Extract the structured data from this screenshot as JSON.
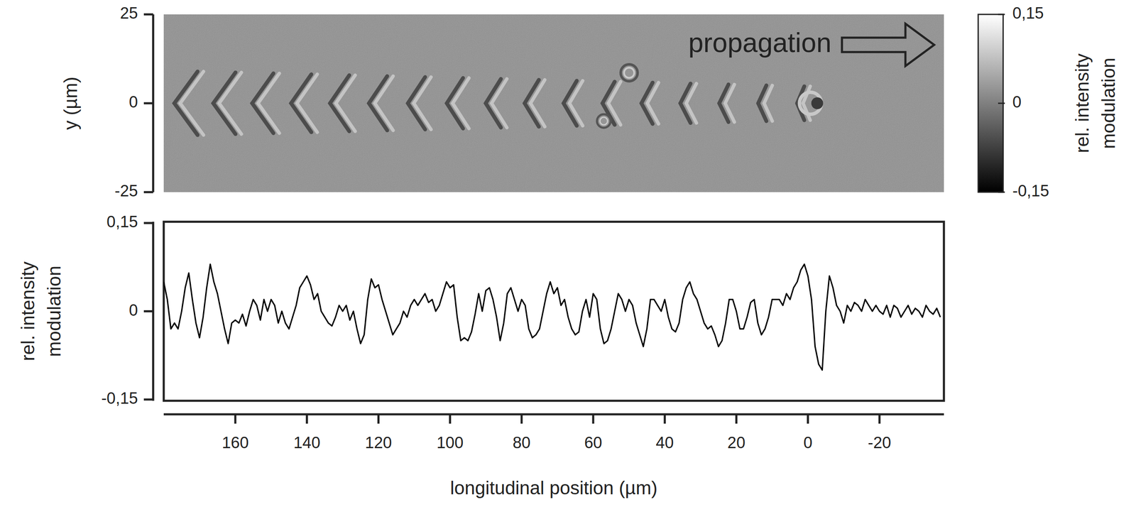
{
  "chart_data": [
    {
      "type": "image",
      "ylabel": "y (µm)",
      "xlim": [
        180,
        -38
      ],
      "ylim": [
        -25,
        25
      ],
      "yticks": [
        25,
        0,
        -25
      ],
      "tick_labels": "y",
      "annotation": "propagation",
      "colorbar": {
        "label": "rel. intensity modulation",
        "range": [
          -0.15,
          0.15
        ],
        "ticks": [
          {
            "value": 0.15,
            "label": "0,15"
          },
          0,
          {
            "value": -0.15,
            "label": "-0,15"
          }
        ]
      }
    },
    {
      "type": "line",
      "xlabel": "longitudinal position (µm)",
      "ylabel": "rel. intensity modulation",
      "color": "#000000",
      "xlim": [
        180,
        -38
      ],
      "ylim": [
        -0.15,
        0.15
      ],
      "xticks": [
        160,
        140,
        120,
        100,
        80,
        60,
        40,
        20,
        0,
        -20
      ],
      "yticks": [
        {
          "value": 0.15,
          "label": "0,15"
        },
        0,
        {
          "value": -0.15,
          "label": "-0,15"
        }
      ],
      "x": [
        180,
        179,
        178,
        177,
        176,
        175,
        174,
        173,
        172,
        171,
        170,
        169,
        168,
        167,
        166,
        165,
        164,
        163,
        162,
        161,
        160,
        159,
        158,
        157,
        156,
        155,
        154,
        153,
        152,
        151,
        150,
        149,
        148,
        147,
        146,
        145,
        144,
        143,
        142,
        141,
        140,
        139,
        138,
        137,
        136,
        135,
        134,
        133,
        132,
        131,
        130,
        129,
        128,
        127,
        126,
        125,
        124,
        123,
        122,
        121,
        120,
        119,
        118,
        117,
        116,
        115,
        114,
        113,
        112,
        111,
        110,
        109,
        108,
        107,
        106,
        105,
        104,
        103,
        102,
        101,
        100,
        99,
        98,
        97,
        96,
        95,
        94,
        93,
        92,
        91,
        90,
        89,
        88,
        87,
        86,
        85,
        84,
        83,
        82,
        81,
        80,
        79,
        78,
        77,
        76,
        75,
        74,
        73,
        72,
        71,
        70,
        69,
        68,
        67,
        66,
        65,
        64,
        63,
        62,
        61,
        60,
        59,
        58,
        57,
        56,
        55,
        54,
        53,
        52,
        51,
        50,
        49,
        48,
        47,
        46,
        45,
        44,
        43,
        42,
        41,
        40,
        39,
        38,
        37,
        36,
        35,
        34,
        33,
        32,
        31,
        30,
        29,
        28,
        27,
        26,
        25,
        24,
        23,
        22,
        21,
        20,
        19,
        18,
        17,
        16,
        15,
        14,
        13,
        12,
        11,
        10,
        9,
        8,
        7,
        6,
        5,
        4,
        3,
        2,
        1,
        0,
        -1,
        -2,
        -3,
        -4,
        -5,
        -6,
        -7,
        -8,
        -9,
        -10,
        -11,
        -12,
        -13,
        -14,
        -15,
        -16,
        -17,
        -18,
        -19,
        -20,
        -21,
        -22,
        -23,
        -24,
        -25,
        -26,
        -27,
        -28,
        -29,
        -30,
        -31,
        -32,
        -33,
        -34,
        -35,
        -36,
        -37
      ],
      "values": [
        0.05,
        0.02,
        -0.03,
        -0.02,
        -0.03,
        0.0,
        0.04,
        0.065,
        0.02,
        -0.02,
        -0.045,
        -0.01,
        0.04,
        0.08,
        0.05,
        0.03,
        0.0,
        -0.03,
        -0.055,
        -0.02,
        -0.015,
        -0.02,
        -0.005,
        -0.025,
        0.0,
        0.02,
        0.01,
        -0.015,
        0.02,
        0.0,
        0.02,
        0.01,
        -0.02,
        0.0,
        -0.02,
        -0.03,
        -0.01,
        0.01,
        0.04,
        0.05,
        0.06,
        0.045,
        0.02,
        0.03,
        0.0,
        -0.01,
        -0.02,
        -0.025,
        -0.01,
        0.01,
        0.0,
        0.01,
        -0.015,
        0.0,
        -0.03,
        -0.055,
        -0.04,
        0.02,
        0.055,
        0.04,
        0.045,
        0.02,
        0.0,
        -0.02,
        -0.04,
        -0.03,
        -0.02,
        0.0,
        -0.01,
        0.01,
        0.02,
        0.01,
        0.02,
        0.03,
        0.015,
        0.02,
        0.0,
        0.01,
        0.03,
        0.05,
        0.04,
        0.045,
        -0.01,
        -0.05,
        -0.045,
        -0.05,
        -0.035,
        -0.005,
        0.03,
        0.0,
        0.035,
        0.04,
        0.02,
        -0.01,
        -0.05,
        -0.02,
        0.03,
        0.04,
        0.02,
        0.0,
        0.02,
        0.01,
        -0.03,
        -0.045,
        -0.04,
        -0.03,
        0.0,
        0.03,
        0.05,
        0.03,
        0.04,
        0.01,
        0.02,
        -0.01,
        -0.03,
        -0.04,
        -0.035,
        0.0,
        0.02,
        -0.01,
        0.03,
        0.02,
        -0.03,
        -0.055,
        -0.05,
        -0.03,
        0.0,
        0.03,
        0.02,
        0.0,
        0.02,
        0.01,
        -0.02,
        -0.04,
        -0.06,
        -0.03,
        0.02,
        0.02,
        0.01,
        0.0,
        0.02,
        -0.01,
        -0.03,
        -0.035,
        -0.02,
        0.02,
        0.04,
        0.05,
        0.03,
        0.02,
        0.0,
        -0.02,
        -0.03,
        -0.025,
        -0.04,
        -0.06,
        -0.05,
        -0.02,
        0.02,
        0.02,
        0.0,
        -0.03,
        -0.03,
        -0.01,
        0.015,
        0.02,
        -0.02,
        -0.04,
        -0.03,
        -0.01,
        0.02,
        0.02,
        0.02,
        0.01,
        0.03,
        0.02,
        0.04,
        0.05,
        0.07,
        0.08,
        0.06,
        0.02,
        -0.06,
        -0.09,
        -0.1,
        0.0,
        0.06,
        0.04,
        0.01,
        0.0,
        -0.02,
        0.01,
        0.0,
        0.015,
        0.01,
        0.0,
        0.02,
        0.01,
        0.0,
        0.01,
        0.0,
        -0.005,
        0.01,
        -0.01,
        0.01,
        0.005,
        -0.01,
        0.0,
        0.01,
        -0.005,
        0.005,
        0.0,
        -0.01,
        0.01,
        0.0,
        -0.005,
        0.005,
        -0.01
      ]
    }
  ]
}
